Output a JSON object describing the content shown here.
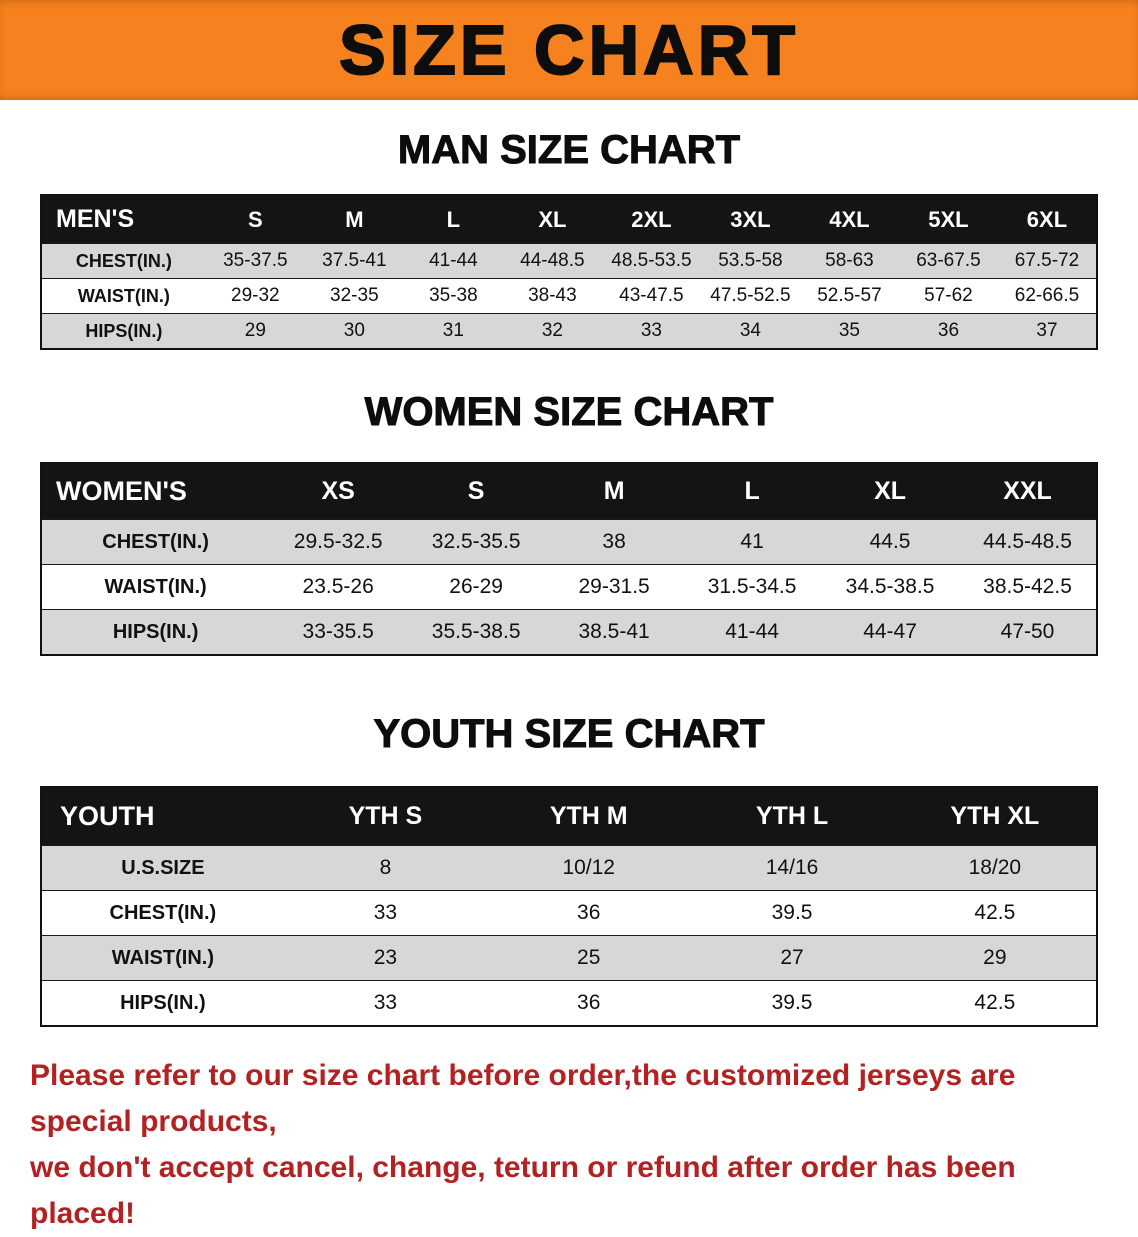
{
  "banner": {
    "title": "SIZE CHART",
    "bg_color": "#f6821f",
    "text_color": "#0d0d0d"
  },
  "colors": {
    "table_header_bg": "#141414",
    "table_header_text": "#ffffff",
    "row_stripe": "#d7d7d7",
    "notice_text": "#b22222"
  },
  "sections": [
    {
      "id": "men",
      "heading": "MAN SIZE CHART",
      "table": {
        "header": [
          "MEN'S",
          "S",
          "M",
          "L",
          "XL",
          "2XL",
          "3XL",
          "4XL",
          "5XL",
          "6XL"
        ],
        "rows": [
          {
            "label": "CHEST(IN.)",
            "values": [
              "35-37.5",
              "37.5-41",
              "41-44",
              "44-48.5",
              "48.5-53.5",
              "53.5-58",
              "58-63",
              "63-67.5",
              "67.5-72"
            ]
          },
          {
            "label": "WAIST(IN.)",
            "values": [
              "29-32",
              "32-35",
              "35-38",
              "38-43",
              "43-47.5",
              "47.5-52.5",
              "52.5-57",
              "57-62",
              "62-66.5"
            ]
          },
          {
            "label": "HIPS(IN.)",
            "values": [
              "29",
              "30",
              "31",
              "32",
              "33",
              "34",
              "35",
              "36",
              "37"
            ]
          }
        ]
      }
    },
    {
      "id": "women",
      "heading": "WOMEN SIZE CHART",
      "table": {
        "header": [
          "WOMEN'S",
          "XS",
          "S",
          "M",
          "L",
          "XL",
          "XXL"
        ],
        "rows": [
          {
            "label": "CHEST(IN.)",
            "values": [
              "29.5-32.5",
              "32.5-35.5",
              "38",
              "41",
              "44.5",
              "44.5-48.5"
            ]
          },
          {
            "label": "WAIST(IN.)",
            "values": [
              "23.5-26",
              "26-29",
              "29-31.5",
              "31.5-34.5",
              "34.5-38.5",
              "38.5-42.5"
            ]
          },
          {
            "label": "HIPS(IN.)",
            "values": [
              "33-35.5",
              "35.5-38.5",
              "38.5-41",
              "41-44",
              "44-47",
              "47-50"
            ]
          }
        ]
      }
    },
    {
      "id": "youth",
      "heading": "YOUTH SIZE CHART",
      "table": {
        "header": [
          "YOUTH",
          "YTH S",
          "YTH M",
          "YTH L",
          "YTH XL"
        ],
        "rows": [
          {
            "label": "U.S.SIZE",
            "values": [
              "8",
              "10/12",
              "14/16",
              "18/20"
            ]
          },
          {
            "label": "CHEST(IN.)",
            "values": [
              "33",
              "36",
              "39.5",
              "42.5"
            ]
          },
          {
            "label": "WAIST(IN.)",
            "values": [
              "23",
              "25",
              "27",
              "29"
            ]
          },
          {
            "label": "HIPS(IN.)",
            "values": [
              "33",
              "36",
              "39.5",
              "42.5"
            ]
          }
        ]
      }
    }
  ],
  "footer": {
    "lines": [
      "Please refer to our size chart before order,the customized jerseys are special products,",
      "we don't accept cancel, change, teturn or refund after order has been placed!"
    ]
  }
}
